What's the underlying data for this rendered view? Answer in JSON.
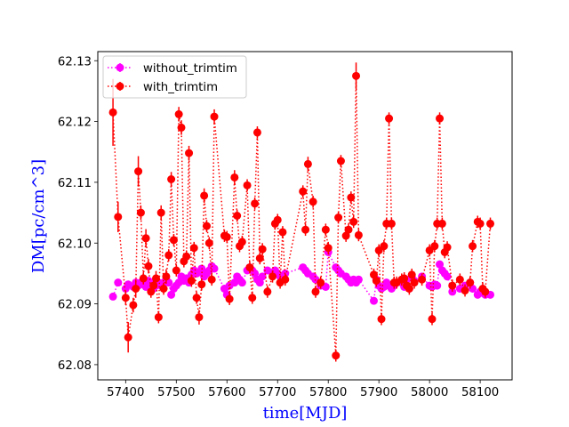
{
  "chart_data": {
    "type": "scatter",
    "title": "",
    "xlabel": "time[MJD]",
    "ylabel": "DM[pc/cm^3]",
    "label_color": "#0000ff",
    "xlim": [
      57345,
      58163
    ],
    "ylim": [
      62.0775,
      62.1315
    ],
    "xticks": [
      57400,
      57500,
      57600,
      57700,
      57800,
      57900,
      58000,
      58100
    ],
    "yticks": [
      62.08,
      62.09,
      62.1,
      62.11,
      62.12,
      62.13
    ],
    "ytick_labels": [
      "62.08",
      "62.09",
      "62.10",
      "62.11",
      "62.12",
      "62.13"
    ],
    "grid": false,
    "legend": {
      "position": "top-left"
    },
    "series": [
      {
        "name": "without_trimtim",
        "color": "#ff00ff",
        "line_style": "dotted",
        "marker": "circle",
        "x": [
          57375,
          57385,
          57400,
          57405,
          57415,
          57420,
          57425,
          57430,
          57435,
          57440,
          57445,
          57450,
          57455,
          57460,
          57465,
          57470,
          57475,
          57480,
          57485,
          57490,
          57495,
          57500,
          57505,
          57510,
          57515,
          57520,
          57525,
          57530,
          57535,
          57540,
          57545,
          57550,
          57555,
          57560,
          57565,
          57570,
          57575,
          57595,
          57600,
          57605,
          57615,
          57620,
          57625,
          57630,
          57640,
          57645,
          57650,
          57655,
          57660,
          57665,
          57670,
          57680,
          57690,
          57695,
          57700,
          57705,
          57710,
          57715,
          57750,
          57755,
          57760,
          57770,
          57775,
          57785,
          57795,
          57800,
          57815,
          57820,
          57825,
          57835,
          57840,
          57845,
          57850,
          57855,
          57860,
          57890,
          57895,
          57900,
          57905,
          57910,
          57915,
          57920,
          57925,
          57930,
          57935,
          57945,
          57950,
          57955,
          57960,
          57965,
          57970,
          57985,
          58000,
          58005,
          58010,
          58015,
          58020,
          58025,
          58030,
          58035,
          58045,
          58060,
          58070,
          58080,
          58085,
          58095,
          58100,
          58105,
          58110,
          58120
        ],
        "y": [
          62.0912,
          62.0935,
          62.0925,
          62.0932,
          62.0928,
          62.0935,
          62.093,
          62.0935,
          62.0932,
          62.0928,
          62.0938,
          62.0935,
          62.0925,
          62.093,
          62.0935,
          62.093,
          62.0935,
          62.094,
          62.0935,
          62.0915,
          62.0925,
          62.093,
          62.0935,
          62.0945,
          62.0938,
          62.0942,
          62.0935,
          62.0948,
          62.0955,
          62.095,
          62.0952,
          62.0958,
          62.0945,
          62.095,
          62.0955,
          62.0962,
          62.0958,
          62.0925,
          62.0915,
          62.093,
          62.0935,
          62.0945,
          62.094,
          62.0935,
          62.0955,
          62.096,
          62.0955,
          62.095,
          62.094,
          62.0935,
          62.0945,
          62.0955,
          62.095,
          62.0955,
          62.095,
          62.0945,
          62.094,
          62.095,
          62.096,
          62.0955,
          62.095,
          62.0945,
          62.094,
          62.093,
          62.0928,
          62.0985,
          62.096,
          62.0955,
          62.095,
          62.0945,
          62.094,
          62.0935,
          62.094,
          62.0935,
          62.094,
          62.0905,
          62.094,
          62.093,
          62.0925,
          62.0928,
          62.0935,
          62.093,
          62.0925,
          62.093,
          62.0935,
          62.0935,
          62.0928,
          62.094,
          62.0925,
          62.0945,
          62.0938,
          62.0945,
          62.093,
          62.0928,
          62.0932,
          62.093,
          62.0965,
          62.0955,
          62.095,
          62.0945,
          62.092,
          62.0925,
          62.093,
          62.0935,
          62.0925,
          62.0915,
          62.092,
          62.0918,
          62.0915,
          62.0915
        ]
      },
      {
        "name": "with_trimtim",
        "color": "#ff0000",
        "line_style": "dotted",
        "marker": "circle",
        "x": [
          57375,
          57385,
          57400,
          57405,
          57415,
          57420,
          57425,
          57430,
          57435,
          57440,
          57445,
          57450,
          57455,
          57460,
          57465,
          57470,
          57475,
          57480,
          57485,
          57490,
          57495,
          57500,
          57505,
          57510,
          57515,
          57520,
          57525,
          57530,
          57535,
          57540,
          57545,
          57550,
          57555,
          57560,
          57565,
          57570,
          57575,
          57595,
          57600,
          57605,
          57615,
          57620,
          57625,
          57630,
          57640,
          57645,
          57650,
          57655,
          57660,
          57665,
          57670,
          57680,
          57690,
          57695,
          57700,
          57705,
          57710,
          57715,
          57750,
          57755,
          57760,
          57770,
          57775,
          57785,
          57795,
          57800,
          57815,
          57820,
          57825,
          57835,
          57840,
          57845,
          57850,
          57855,
          57860,
          57890,
          57895,
          57900,
          57905,
          57910,
          57915,
          57920,
          57925,
          57930,
          57935,
          57945,
          57950,
          57955,
          57960,
          57965,
          57970,
          57985,
          58000,
          58005,
          58010,
          58015,
          58020,
          58025,
          58030,
          58035,
          58045,
          58060,
          58070,
          58080,
          58085,
          58095,
          58100,
          58105,
          58110,
          58120
        ],
        "y": [
          62.1215,
          62.1043,
          62.091,
          62.0845,
          62.0898,
          62.0925,
          62.1118,
          62.105,
          62.0942,
          62.1008,
          62.0962,
          62.092,
          62.093,
          62.0942,
          62.0878,
          62.105,
          62.0925,
          62.0945,
          62.098,
          62.1105,
          62.1005,
          62.0955,
          62.1212,
          62.119,
          62.097,
          62.0978,
          62.1148,
          62.0938,
          62.0992,
          62.091,
          62.0878,
          62.0932,
          62.1078,
          62.1028,
          62.1,
          62.094,
          62.1208,
          62.1012,
          62.101,
          62.0908,
          62.1108,
          62.1045,
          62.0995,
          62.1002,
          62.1095,
          62.096,
          62.091,
          62.1065,
          62.1182,
          62.0975,
          62.099,
          62.092,
          62.0945,
          62.1032,
          62.1038,
          62.0935,
          62.1018,
          62.094,
          62.1085,
          62.1022,
          62.113,
          62.1068,
          62.092,
          62.0935,
          62.1022,
          62.0992,
          62.0815,
          62.1042,
          62.1135,
          62.1012,
          62.1022,
          62.1075,
          62.1035,
          62.1275,
          62.1013,
          62.0948,
          62.0938,
          62.0988,
          62.0875,
          62.0995,
          62.1032,
          62.1205,
          62.1032,
          62.0935,
          62.0935,
          62.094,
          62.0942,
          62.093,
          62.0925,
          62.0948,
          62.0935,
          62.094,
          62.0988,
          62.0875,
          62.0995,
          62.1032,
          62.1205,
          62.1032,
          62.0985,
          62.0993,
          62.093,
          62.094,
          62.0922,
          62.0935,
          62.0995,
          62.1035,
          62.1032,
          62.0925,
          62.092,
          62.1032
        ],
        "yerr": [
          0.0055,
          0.0025,
          0.0012,
          0.0025,
          0.0012,
          0.0015,
          0.0025,
          0.0012,
          0.001,
          0.0015,
          0.0012,
          0.001,
          0.0012,
          0.0012,
          0.001,
          0.0012,
          0.001,
          0.0012,
          0.001,
          0.0012,
          0.001,
          0.001,
          0.0012,
          0.0012,
          0.001,
          0.001,
          0.0012,
          0.001,
          0.001,
          0.001,
          0.0012,
          0.001,
          0.0012,
          0.001,
          0.001,
          0.001,
          0.0012,
          0.001,
          0.001,
          0.001,
          0.0012,
          0.001,
          0.001,
          0.001,
          0.001,
          0.001,
          0.001,
          0.001,
          0.001,
          0.001,
          0.001,
          0.001,
          0.001,
          0.001,
          0.001,
          0.001,
          0.001,
          0.001,
          0.001,
          0.001,
          0.0012,
          0.001,
          0.001,
          0.001,
          0.001,
          0.001,
          0.001,
          0.001,
          0.001,
          0.001,
          0.001,
          0.001,
          0.001,
          0.0022,
          0.001,
          0.001,
          0.001,
          0.001,
          0.001,
          0.001,
          0.001,
          0.001,
          0.001,
          0.001,
          0.001,
          0.001,
          0.001,
          0.001,
          0.001,
          0.001,
          0.001,
          0.001,
          0.001,
          0.001,
          0.001,
          0.001,
          0.001,
          0.001,
          0.001,
          0.001,
          0.001,
          0.001,
          0.001,
          0.001,
          0.001,
          0.001,
          0.001,
          0.001,
          0.001,
          0.001
        ]
      }
    ]
  }
}
